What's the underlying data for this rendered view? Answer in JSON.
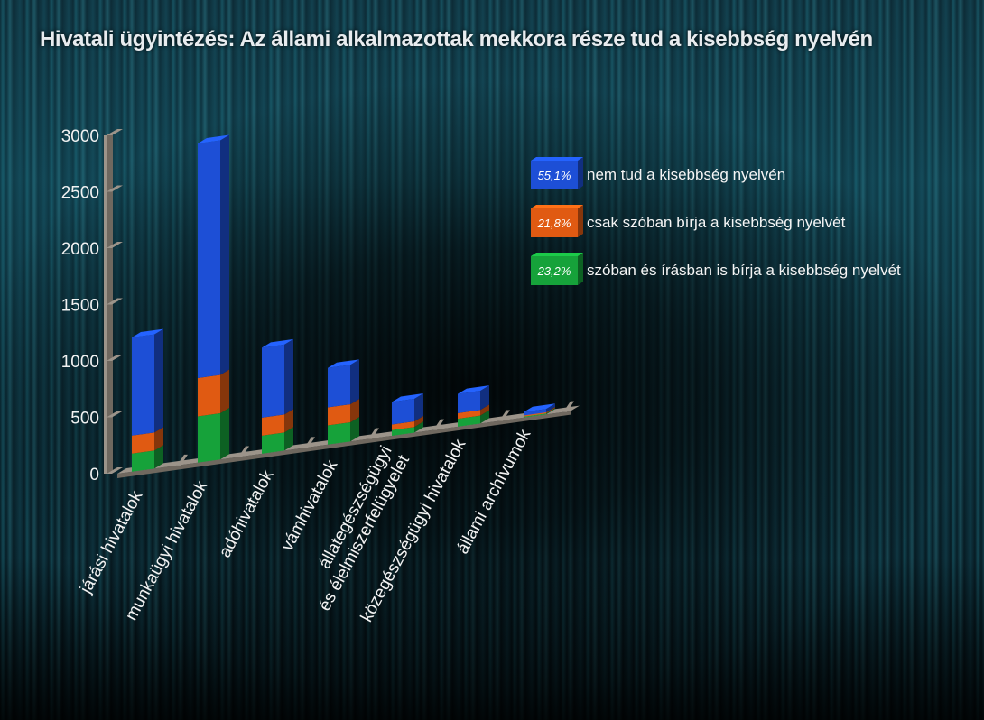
{
  "colors": {
    "blue": "#1d4fd6",
    "orange": "#e05a12",
    "green": "#16a23a",
    "axis": "#9c948a",
    "axis_dark": "#6f685f"
  },
  "chart_data": {
    "type": "bar",
    "stacked": true,
    "title": "Hivatali ügyintézés: Az állami alkalmazottak mekkora része tud a kisebbség nyelvén",
    "categories": [
      "járási hivatalok",
      "munkaügyi hivatalok",
      "adóhivatalok",
      "vámhivatalok",
      "állategészségügyi\nés élelmiszerfelügyelet",
      "közegészségügyi hivatalok",
      "állami archívumok"
    ],
    "series": [
      {
        "name": "szóban és írásban is bírja a kisebbség nyelvét",
        "color": "#16a23a",
        "values": [
          160,
          410,
          160,
          170,
          50,
          70,
          8
        ]
      },
      {
        "name": "csak szóban bírja a kisebbség nyelvét",
        "color": "#e05a12",
        "values": [
          160,
          340,
          160,
          160,
          50,
          50,
          10
        ]
      },
      {
        "name": "nem tud a kisebbség nyelvén",
        "color": "#1d4fd6",
        "values": [
          870,
          2080,
          620,
          350,
          200,
          170,
          30
        ]
      }
    ],
    "legend": [
      {
        "pct": "55,1%",
        "label": "nem tud a kisebbség nyelvén",
        "color": "#1d4fd6"
      },
      {
        "pct": "21,8%",
        "label": "csak szóban bírja a kisebbség nyelvét",
        "color": "#e05a12"
      },
      {
        "pct": "23,2%",
        "label": "szóban és írásban is bírja a kisebbség nyelvét",
        "color": "#16a23a"
      }
    ],
    "yticks": [
      0,
      500,
      1000,
      1500,
      2000,
      2500,
      3000
    ],
    "ylim": [
      0,
      3000
    ],
    "xlabel": "",
    "ylabel": "",
    "grid": false,
    "legend_position": "top-right"
  }
}
